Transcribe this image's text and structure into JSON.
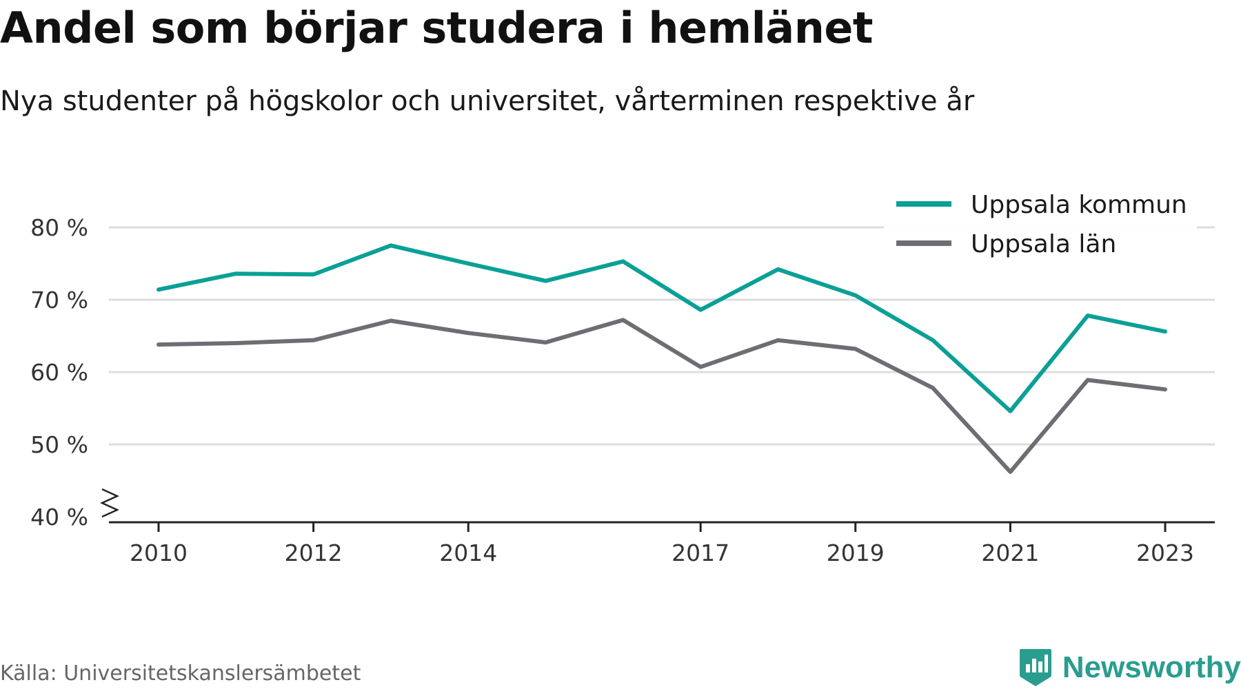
{
  "header": {
    "title": "Andel som börjar studera i hemlänet",
    "subtitle": "Nya studenter på högskolor och universitet, vårterminen respektive år"
  },
  "footer": {
    "source": "Källa: Universitetskanslersämbetet",
    "brand": "Newsworthy"
  },
  "colors": {
    "series_kommun": "#0aa096",
    "series_lan": "#6e6d73",
    "grid": "#dddddd",
    "axis": "#222222",
    "brand": "#2a9d8f"
  },
  "chart_data": {
    "type": "line",
    "x": [
      2010,
      2011,
      2012,
      2013,
      2014,
      2015,
      2016,
      2017,
      2018,
      2019,
      2020,
      2021,
      2022,
      2023
    ],
    "x_tick_labels": [
      "2010",
      "2012",
      "2014",
      "2017",
      "2019",
      "2021",
      "2023"
    ],
    "y_tick_labels": [
      "40 %",
      "50 %",
      "60 %",
      "70 %",
      "80 %"
    ],
    "y_ticks": [
      40,
      50,
      60,
      70,
      80
    ],
    "ylim": [
      40,
      80
    ],
    "y_axis_break": true,
    "grid": true,
    "legend_position": "top-right",
    "series": [
      {
        "name": "Uppsala kommun",
        "values": [
          71.4,
          73.6,
          73.5,
          77.5,
          75.0,
          72.6,
          75.3,
          68.6,
          74.2,
          70.6,
          64.4,
          54.6,
          67.8,
          65.6
        ]
      },
      {
        "name": "Uppsala län",
        "values": [
          63.8,
          64.0,
          64.4,
          67.1,
          65.4,
          64.1,
          67.2,
          60.7,
          64.4,
          63.2,
          57.8,
          46.2,
          58.9,
          57.6
        ]
      }
    ]
  }
}
